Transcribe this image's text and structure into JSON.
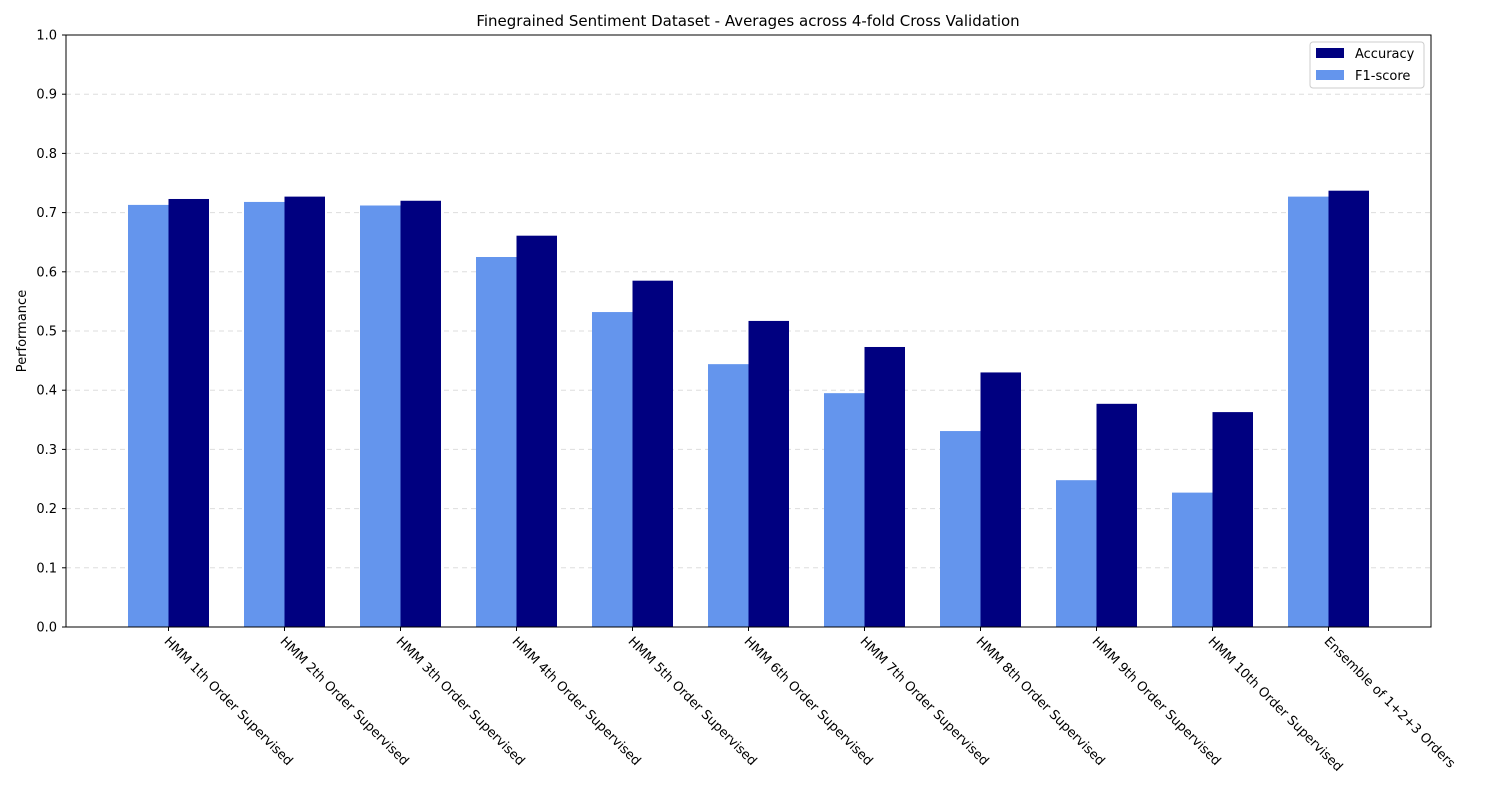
{
  "chart_data": {
    "type": "bar",
    "title": "Finegrained Sentiment Dataset - Averages across 4-fold Cross Validation",
    "xlabel": "",
    "ylabel": "Performance",
    "ylim": [
      0.0,
      1.0
    ],
    "yticks": [
      "0.0",
      "0.1",
      "0.2",
      "0.3",
      "0.4",
      "0.5",
      "0.6",
      "0.7",
      "0.8",
      "0.9",
      "1.0"
    ],
    "grid": "horizontal dashed",
    "legend_position": "top-right",
    "categories": [
      "HMM 1th Order Supervised",
      "HMM 2th Order Supervised",
      "HMM 3th Order Supervised",
      "HMM 4th Order Supervised",
      "HMM 5th Order Supervised",
      "HMM 6th Order Supervised",
      "HMM 7th Order Supervised",
      "HMM 8th Order Supervised",
      "HMM 9th Order Supervised",
      "HMM 10th Order Supervised",
      "Ensemble of 1+2+3 Orders"
    ],
    "series": [
      {
        "name": "F1-score",
        "color": "#6495ED",
        "values": [
          0.713,
          0.718,
          0.712,
          0.625,
          0.532,
          0.444,
          0.395,
          0.331,
          0.248,
          0.227,
          0.727
        ]
      },
      {
        "name": "Accuracy",
        "color": "#000080",
        "values": [
          0.723,
          0.727,
          0.72,
          0.661,
          0.585,
          0.517,
          0.473,
          0.43,
          0.377,
          0.363,
          0.737
        ]
      }
    ],
    "legend_order": [
      "Accuracy",
      "F1-score"
    ]
  }
}
